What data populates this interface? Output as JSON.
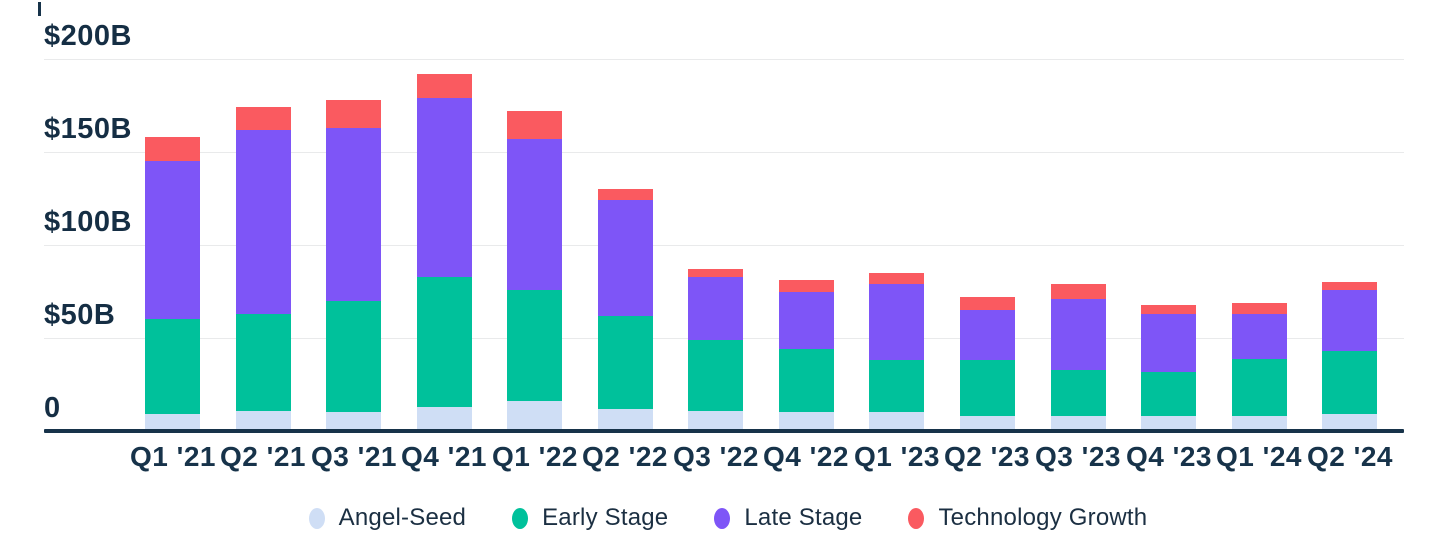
{
  "chart_data": {
    "type": "bar",
    "stacked": true,
    "unit": "USD billions",
    "title": "",
    "xlabel": "",
    "ylabel": "",
    "categories": [
      "Q1 '21",
      "Q2 '21",
      "Q3 '21",
      "Q4 '21",
      "Q1 '22",
      "Q2 '22",
      "Q3 '22",
      "Q4 '22",
      "Q1 '23",
      "Q2 '23",
      "Q3 '23",
      "Q4 '23",
      "Q1 '24",
      "Q2 '24"
    ],
    "series": [
      {
        "name": "Angel-Seed",
        "color": "#cfdef5",
        "values": [
          9,
          11,
          10,
          13,
          16,
          12,
          11,
          10,
          10,
          8,
          8,
          8,
          8,
          9
        ]
      },
      {
        "name": "Early Stage",
        "color": "#00c19b",
        "values": [
          51,
          52,
          60,
          70,
          60,
          50,
          38,
          34,
          28,
          30,
          25,
          24,
          31,
          34
        ]
      },
      {
        "name": "Late Stage",
        "color": "#7e55f7",
        "values": [
          85,
          99,
          93,
          96,
          81,
          62,
          34,
          31,
          41,
          27,
          38,
          31,
          24,
          33
        ]
      },
      {
        "name": "Technology Growth",
        "color": "#fa5a60",
        "values": [
          13,
          12,
          15,
          13,
          15,
          6,
          4,
          6,
          6,
          7,
          8,
          5,
          6,
          4
        ]
      }
    ],
    "totals": [
      158,
      174,
      178,
      192,
      172,
      130,
      87,
      81,
      85,
      72,
      79,
      68,
      69,
      80
    ],
    "y_axis": {
      "max": 200,
      "ticks": [
        {
          "label": "$200B",
          "value": 200
        },
        {
          "label": "$150B",
          "value": 150
        },
        {
          "label": "$100B",
          "value": 100
        },
        {
          "label": "$50B",
          "value": 50
        },
        {
          "label": "0",
          "value": 0
        }
      ]
    },
    "grid": "horizontal",
    "legend_position": "bottom",
    "colors": {
      "text": "#152e44",
      "gridline": "#e9eaeb",
      "axis_line": "#17334a",
      "background": "#ffffff"
    }
  }
}
